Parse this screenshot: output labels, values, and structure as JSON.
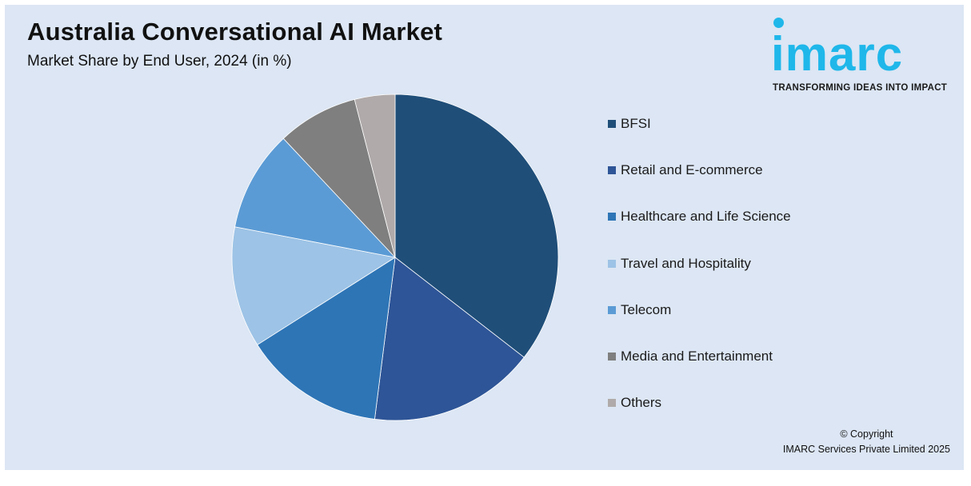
{
  "header": {
    "title": "Australia Conversational AI Market",
    "subtitle": "Market Share by End User, 2024 (in %)"
  },
  "logo": {
    "wordmark": "imarc",
    "tagline": "TRANSFORMING IDEAS INTO IMPACT",
    "color": "#1fb7ea"
  },
  "chart_data": {
    "type": "pie",
    "categories": [
      "BFSI",
      "Retail and E-commerce",
      "Healthcare and Life Science",
      "Travel and Hospitality",
      "Telecom",
      "Media and Entertainment",
      "Others"
    ],
    "values": [
      35.5,
      16.5,
      14.0,
      12.0,
      10.0,
      8.0,
      4.0
    ],
    "colors": [
      "#1f4e79",
      "#2e5597",
      "#2e75b6",
      "#9dc3e6",
      "#5b9bd5",
      "#7f7f7f",
      "#b0aaaa"
    ],
    "start_angle": "12 o'clock",
    "direction": "clockwise",
    "legend_position": "right"
  },
  "footer": {
    "copyright_line1": "© Copyright",
    "copyright_line2": "IMARC Services Private Limited 2025"
  }
}
